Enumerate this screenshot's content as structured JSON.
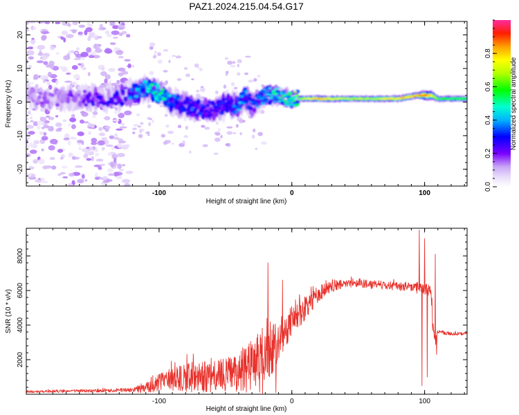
{
  "title": "PAZ1.2024.215.04.54.G17",
  "chart_data": [
    {
      "type": "heatmap",
      "xlabel": "Height of straight line (km)",
      "ylabel": "Frequency (Hz)",
      "xlim": [
        -200,
        132
      ],
      "ylim": [
        -25,
        24
      ],
      "x_ticks": [
        -100,
        0,
        100
      ],
      "x_tick_labels": [
        "-100",
        "0",
        "100"
      ],
      "y_ticks": [
        -20,
        -10,
        0,
        10,
        20
      ],
      "y_tick_labels": [
        "-20",
        "-10",
        "0",
        "10",
        "20"
      ],
      "grid": false,
      "colorbar": {
        "label": "Normalized spectral amplitude",
        "range": [
          0,
          1
        ],
        "ticks": [
          0.0,
          0.2,
          0.4,
          0.6,
          0.8
        ],
        "tick_labels": [
          "0.0",
          "0.2",
          "0.4",
          "0.6",
          "0.8"
        ],
        "colormap": "rainbow (white, violet, blue, cyan, green, yellow, orange, red, magenta)"
      },
      "ridge": {
        "x": [
          -200,
          -180,
          -160,
          -140,
          -125,
          -110,
          -100,
          -90,
          -80,
          -70,
          -60,
          -50,
          -40,
          -35,
          -30,
          -20,
          -10,
          0,
          10,
          20,
          40,
          60,
          80,
          95,
          100,
          105,
          110,
          132
        ],
        "freq": [
          2,
          1,
          1,
          1,
          2,
          4,
          3,
          0,
          -1,
          -2,
          -2,
          -1,
          -1,
          2,
          -1,
          2,
          2,
          1,
          1,
          1,
          1,
          1,
          1,
          2,
          2,
          2,
          1,
          1
        ],
        "amplitude": [
          0.15,
          0.15,
          0.2,
          0.25,
          0.3,
          0.45,
          0.5,
          0.35,
          0.3,
          0.3,
          0.25,
          0.3,
          0.35,
          0.4,
          0.3,
          0.45,
          0.55,
          0.6,
          0.7,
          0.85,
          0.7,
          0.7,
          0.8,
          0.85,
          0.9,
          0.8,
          0.6,
          0.6
        ],
        "width_hz": [
          8,
          8,
          7,
          7,
          6,
          5,
          5,
          6,
          6,
          6,
          6,
          6,
          5,
          6,
          5,
          3,
          2.5,
          2,
          2,
          2,
          2,
          2,
          2,
          2,
          3,
          3,
          2,
          2
        ]
      },
      "noise_region": [
        -200,
        -122
      ]
    },
    {
      "type": "line",
      "xlabel": "Height of straight line (km)",
      "ylabel": "SNR (10 * v/v)",
      "xlim": [
        -200,
        132
      ],
      "ylim": [
        0,
        9600
      ],
      "x_ticks": [
        -100,
        0,
        100
      ],
      "x_tick_labels": [
        "-100",
        "0",
        "100"
      ],
      "y_ticks": [
        2000,
        4000,
        6000,
        8000
      ],
      "y_tick_labels": [
        "2000",
        "4000",
        "6000",
        "8000"
      ],
      "grid": false,
      "series": [
        {
          "color": "#e8312b",
          "baseline": {
            "x": [
              -200,
              -150,
              -120,
              -110,
              -100,
              -90,
              -80,
              -60,
              -40,
              -30,
              -20,
              -15,
              -10,
              -5,
              0,
              10,
              20,
              30,
              40,
              50,
              60,
              80,
              90,
              95,
              100,
              105,
              106,
              108,
              110,
              120,
              132
            ],
            "y": [
              150,
              200,
              250,
              350,
              700,
              900,
              1000,
              1000,
              1200,
              1500,
              2200,
              2600,
              3000,
              3800,
              4200,
              5000,
              5800,
              6200,
              6400,
              6450,
              6350,
              6250,
              6200,
              6100,
              6100,
              6000,
              4000,
              3000,
              3600,
              3500,
              3500
            ]
          },
          "noise": {
            "x": [
              -200,
              -120,
              -100,
              -80,
              -60,
              -40,
              -30,
              -20,
              -10,
              0,
              20,
              40,
              90,
              100,
              106,
              110,
              132
            ],
            "amp": [
              60,
              120,
              500,
              900,
              900,
              1100,
              1800,
              2200,
              1400,
              900,
              500,
              250,
              250,
              350,
              600,
              120,
              80
            ]
          },
          "spikes": [
            {
              "x": -18,
              "y": 7600
            },
            {
              "x": -12,
              "y": 100
            },
            {
              "x": -7,
              "y": 6600
            },
            {
              "x": 96,
              "y": 9500
            },
            {
              "x": 98,
              "y": 500
            },
            {
              "x": 100,
              "y": 9000
            },
            {
              "x": 102,
              "y": 1000
            },
            {
              "x": 108,
              "y": 8100
            },
            {
              "x": 109,
              "y": 2300
            }
          ]
        }
      ]
    }
  ]
}
